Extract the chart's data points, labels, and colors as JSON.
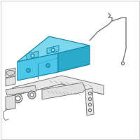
{
  "bg_color": "#ffffff",
  "battery_fill": "#4dc8e8",
  "battery_top_fill": "#7dd8ee",
  "battery_side_fill": "#2aabcc",
  "battery_edge": "#1a8aaa",
  "line_color": "#7a7a7a",
  "line_color_light": "#aaaaaa",
  "lw": 0.7,
  "fig_size": [
    2.0,
    2.0
  ],
  "dpi": 100
}
